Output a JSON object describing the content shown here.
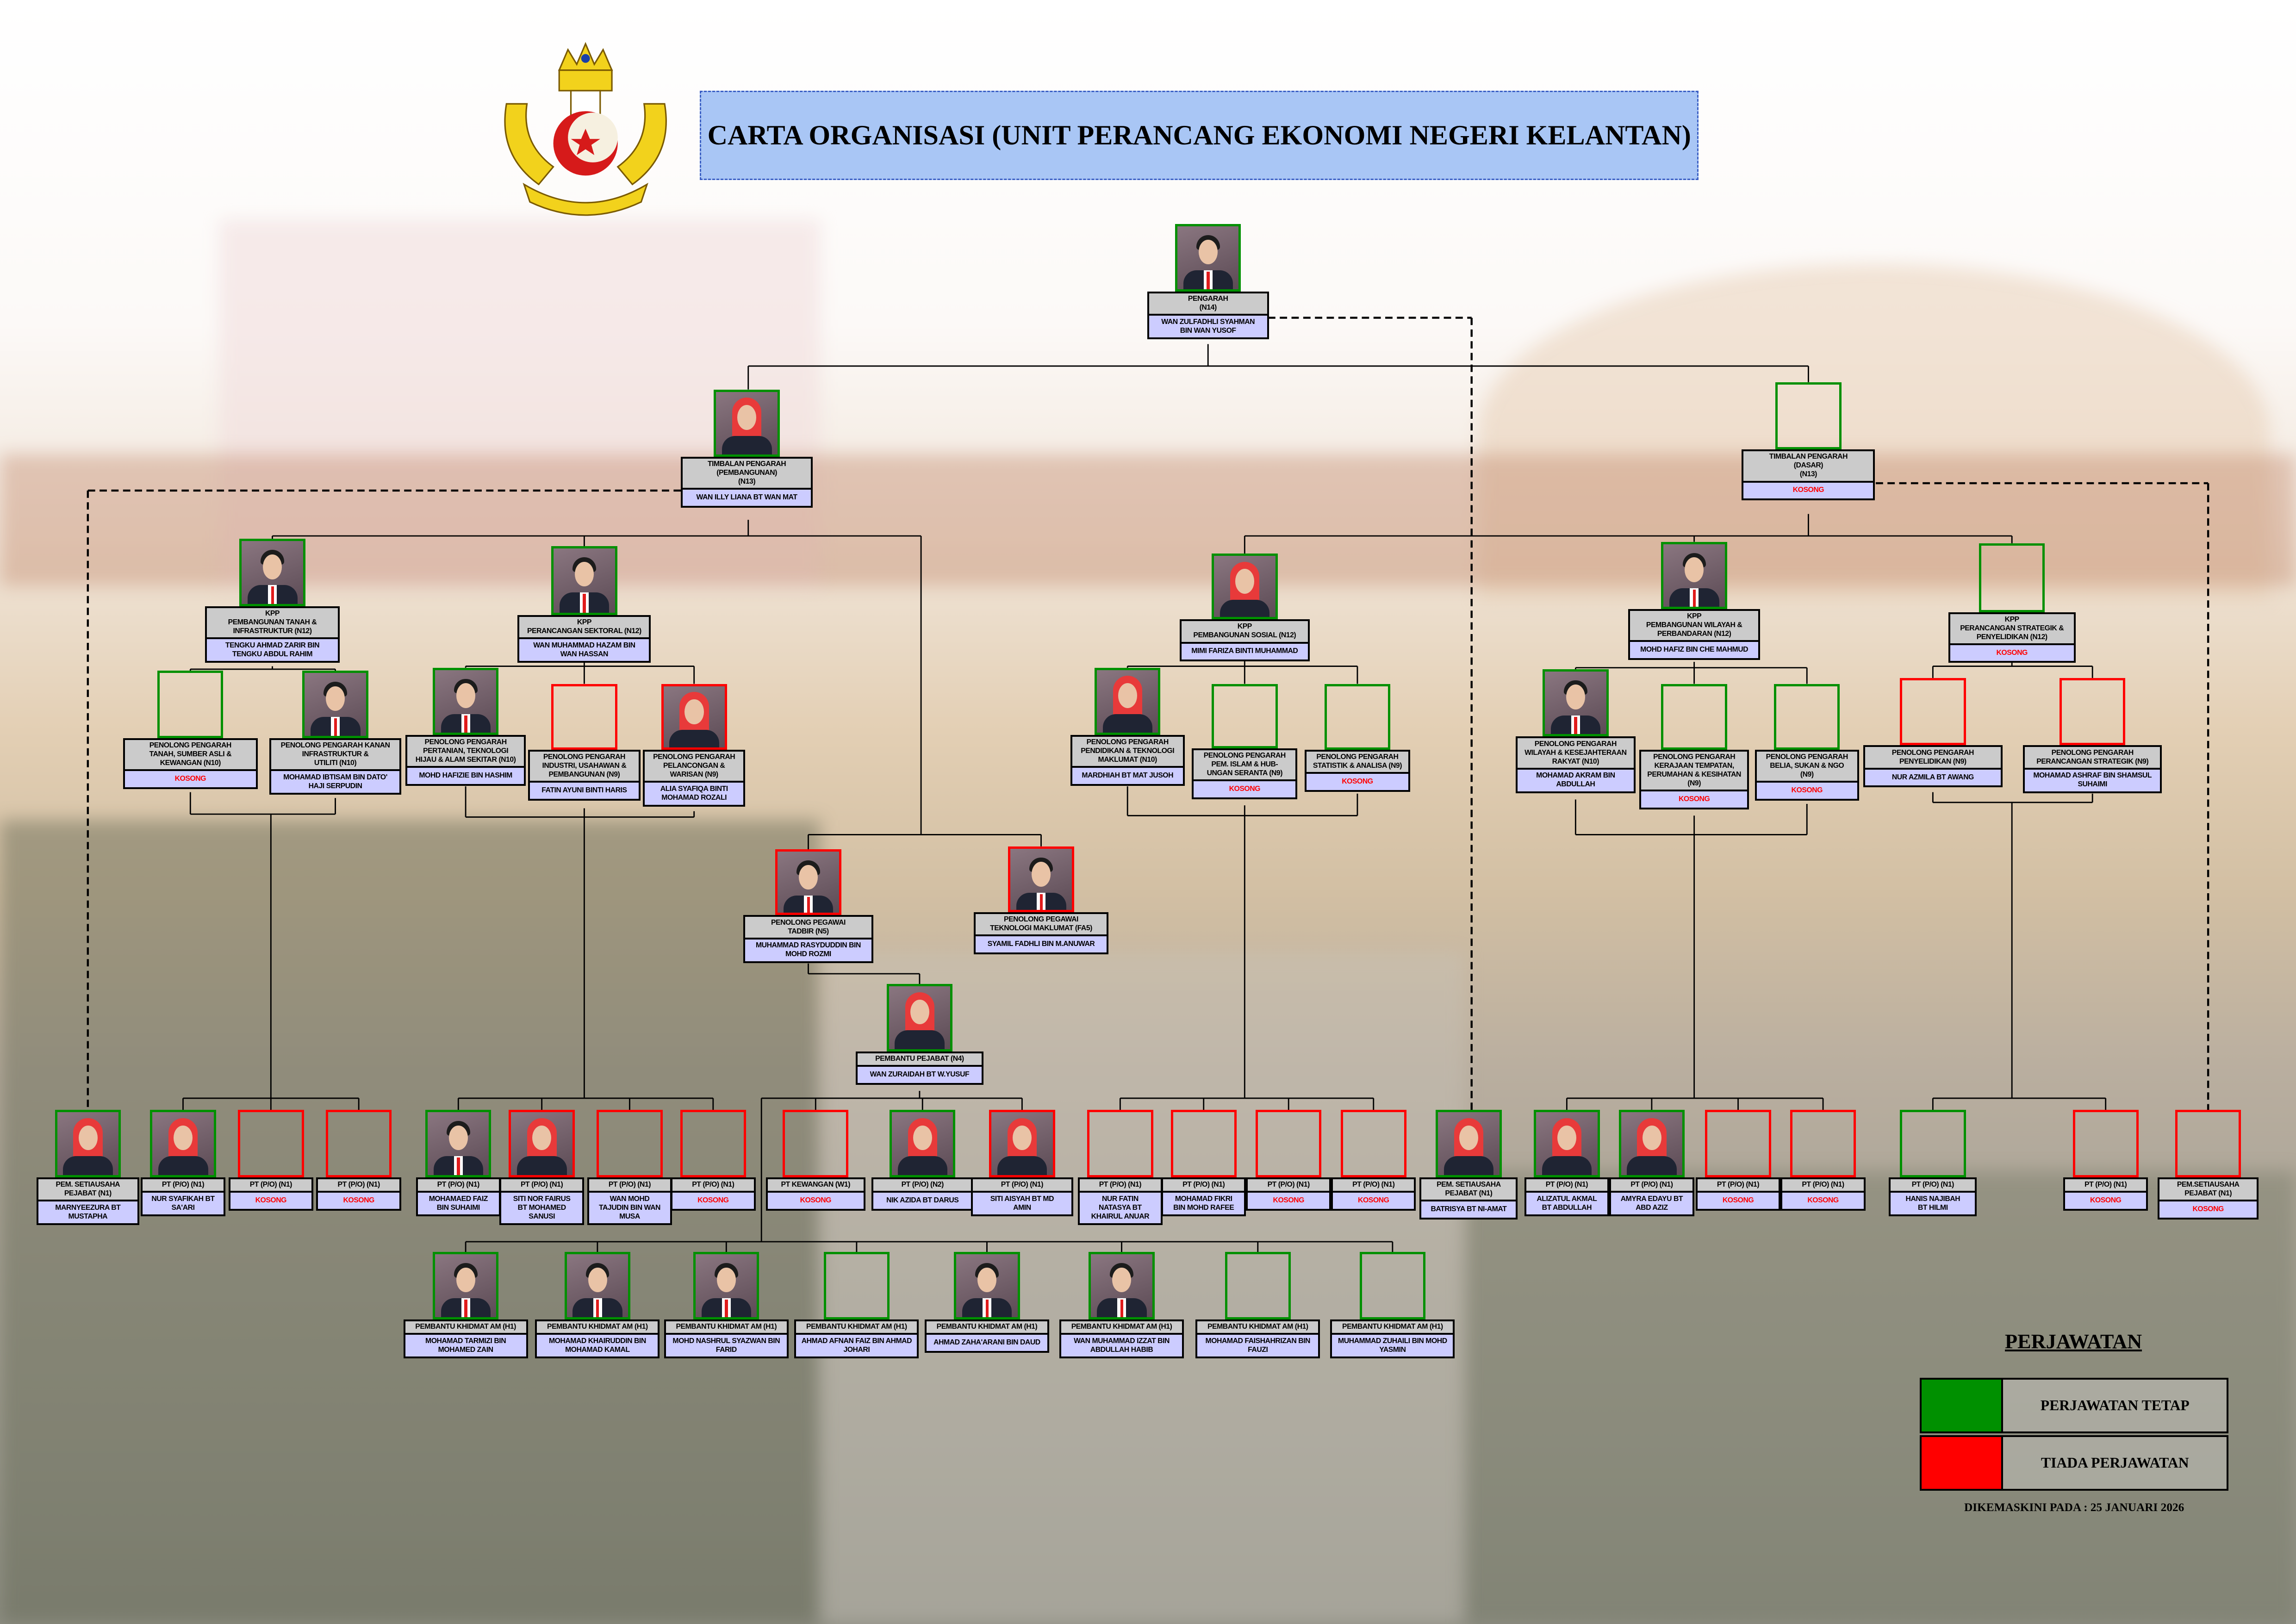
{
  "header": {
    "title": "CARTA ORGANISASI (UNIT PERANCANG EKONOMI NEGERI KELANTAN)",
    "logo_icon": "kelantan-state-crest"
  },
  "colors": {
    "tetap": "#009000",
    "tiada": "#ff0000",
    "title_bg": "#a9c6f5",
    "name_bg": "#ccccff",
    "title_cell_bg": "#cbcbcb",
    "vacant_text": "#ff0000"
  },
  "positions": [
    {
      "title": "PENGARAH\n(N14)",
      "name": "WAN ZULFADHLI SYAHMAN\nBIN WAN YUSOF",
      "frame": "tetap",
      "photo": "m"
    },
    {
      "title": "TIMBALAN PENGARAH\n(PEMBANGUNAN)\n(N13)",
      "name": "WAN ILLY LIANA BT WAN MAT",
      "frame": "tetap",
      "photo": "f"
    },
    {
      "title": "TIMBALAN PENGARAH\n(DASAR)\n(N13)",
      "name": "KOSONG",
      "vacant": true,
      "frame": "tetap",
      "photo": null
    },
    {
      "title": "KPP\nPEMBANGUNAN TANAH &\nINFRASTRUKTUR (N12)",
      "name": "TENGKU AHMAD ZARIR BIN\nTENGKU ABDUL RAHIM",
      "frame": "tetap",
      "photo": "m"
    },
    {
      "title": "KPP\nPERANCANGAN SEKTORAL (N12)",
      "name": "WAN MUHAMMAD HAZAM BIN\nWAN HASSAN",
      "frame": "tetap",
      "photo": "m"
    },
    {
      "title": "KPP\nPEMBANGUNAN SOSIAL (N12)",
      "name": "MIMI FARIZA BINTI MUHAMMAD",
      "frame": "tetap",
      "photo": "f"
    },
    {
      "title": "KPP\nPEMBANGUNAN WILAYAH &\nPERBANDARAN (N12)",
      "name": "MOHD HAFIZ BIN CHE MAHMUD",
      "frame": "tetap",
      "photo": "m"
    },
    {
      "title": "KPP\nPERANCANGAN STRATEGIK &\nPENYELIDIKAN (N12)",
      "name": "KOSONG",
      "vacant": true,
      "frame": "tetap",
      "photo": null
    },
    {
      "title": "PENOLONG PENGARAH\nTANAH, SUMBER ASLI &\nKEWANGAN (N10)",
      "name": "KOSONG",
      "vacant": true,
      "frame": "tetap",
      "photo": null
    },
    {
      "title": "PENOLONG PENGARAH KANAN\nINFRASTRUKTUR &\nUTILITI (N10)",
      "name": "MOHAMAD IBTISAM BIN DATO'\nHAJI SERPUDIN",
      "frame": "tetap",
      "photo": "m"
    },
    {
      "title": "PENOLONG PENGARAH\nPERTANIAN, TEKNOLOGI\nHIJAU & ALAM SEKITAR (N10)",
      "name": "MOHD HAFIZIE BIN HASHIM",
      "frame": "tetap",
      "photo": "m"
    },
    {
      "title": "PENOLONG PENGARAH\nINDUSTRI, USAHAWAN &\nPEMBANGUNAN (N9)",
      "name": "FATIN AYUNI BINTI HARIS",
      "frame": "tiada",
      "photo": null
    },
    {
      "title": "PENOLONG PENGARAH\nPELANCONGAN &\nWARISAN (N9)",
      "name": "ALIA SYAFIQA BINTI\nMOHAMAD ROZALI",
      "frame": "tiada",
      "photo": "f"
    },
    {
      "title": "PENOLONG PENGARAH\nPENDIDIKAN & TEKNOLOGI\nMAKLUMAT (N10)",
      "name": "MARDHIAH BT MAT JUSOH",
      "frame": "tetap",
      "photo": "f"
    },
    {
      "title": "PENOLONG PENGARAH\nPEM. ISLAM & HUB-\nUNGAN SERANTA (N9)",
      "name": "KOSONG",
      "vacant": true,
      "frame": "tetap",
      "photo": null
    },
    {
      "title": "PENOLONG PENGARAH\nSTATISTIK & ANALISA (N9)",
      "name": "KOSONG",
      "vacant": true,
      "frame": "tetap",
      "photo": null
    },
    {
      "title": "PENOLONG PENGARAH\nWILAYAH & KESEJAHTERAAN\nRAKYAT (N10)",
      "name": "MOHAMAD AKRAM BIN\nABDULLAH",
      "frame": "tetap",
      "photo": "m"
    },
    {
      "title": "PENOLONG PENGARAH\nKERAJAAN TEMPATAN,\nPERUMAHAN & KESIHATAN\n(N9)",
      "name": "KOSONG",
      "vacant": true,
      "frame": "tetap",
      "photo": null
    },
    {
      "title": "PENOLONG PENGARAH\nBELIA, SUKAN & NGO\n(N9)",
      "name": "KOSONG",
      "vacant": true,
      "frame": "tetap",
      "photo": null
    },
    {
      "title": "PENOLONG PENGARAH\nPENYELIDIKAN (N9)",
      "name": "NUR AZMILA BT AWANG",
      "frame": "tiada",
      "photo": null
    },
    {
      "title": "PENOLONG PENGARAH\nPERANCANGAN STRATEGIK (N9)",
      "name": "MOHAMAD ASHRAF BIN SHAMSUL\nSUHAIMI",
      "frame": "tiada",
      "photo": null
    },
    {
      "title": "PENOLONG PEGAWAI\nTADBIR (N5)",
      "name": "MUHAMMAD RASYDUDDIN BIN\nMOHD ROZMI",
      "frame": "tiada",
      "photo": "m"
    },
    {
      "title": "PENOLONG PEGAWAI\nTEKNOLOGI MAKLUMAT (FA5)",
      "name": "SYAMIL FADHLI BIN M.ANUWAR",
      "frame": "tiada",
      "photo": "m"
    },
    {
      "title": "PEMBANTU PEJABAT (N4)",
      "name": "WAN ZURAIDAH BT W.YUSUF",
      "frame": "tetap",
      "photo": "f"
    },
    {
      "title": "PEM. SETIAUSAHA\nPEJABAT (N1)",
      "name": "MARNYEEZURA BT\nMUSTAPHA",
      "frame": "tetap",
      "photo": "f"
    },
    {
      "title": "PT (P/O) (N1)",
      "name": "NUR SYAFIKAH BT\nSA'ARI",
      "frame": "tetap",
      "photo": "f"
    },
    {
      "title": "PT (P/O) (N1)",
      "name": "KOSONG",
      "vacant": true,
      "frame": "tiada",
      "photo": null
    },
    {
      "title": "PT (P/O) (N1)",
      "name": "KOSONG",
      "vacant": true,
      "frame": "tiada",
      "photo": null
    },
    {
      "title": "PT (P/O) (N1)",
      "name": "MOHAMAED FAIZ\nBIN SUHAIMI",
      "frame": "tetap",
      "photo": "m"
    },
    {
      "title": "PT (P/O) (N1)",
      "name": "SITI NOR FAIRUS\nBT MOHAMED\nSANUSI",
      "frame": "tiada",
      "photo": "f"
    },
    {
      "title": "PT (P/O) (N1)",
      "name": "WAN MOHD\nTAJUDIN BIN WAN\nMUSA",
      "frame": "tiada",
      "photo": null
    },
    {
      "title": "PT (P/O) (N1)",
      "name": "KOSONG",
      "vacant": true,
      "frame": "tiada",
      "photo": null
    },
    {
      "title": "PT KEWANGAN (W1)",
      "name": "KOSONG",
      "vacant": true,
      "frame": "tiada",
      "photo": null
    },
    {
      "title": "PT (P/O) (N2)",
      "name": "NIK AZIDA BT DARUS",
      "frame": "tetap",
      "photo": "f"
    },
    {
      "title": "PT (P/O) (N1)",
      "name": "SITI AISYAH BT MD\nAMIN",
      "frame": "tiada",
      "photo": "f"
    },
    {
      "title": "PT (P/O) (N1)",
      "name": "NUR FATIN\nNATASYA BT\nKHAIRUL ANUAR",
      "frame": "tiada",
      "photo": null
    },
    {
      "title": "PT (P/O) (N1)",
      "name": "MOHAMAD FIKRI\nBIN MOHD RAFEE",
      "frame": "tiada",
      "photo": null
    },
    {
      "title": "PT (P/O) (N1)",
      "name": "KOSONG",
      "vacant": true,
      "frame": "tiada",
      "photo": null
    },
    {
      "title": "PT (P/O) (N1)",
      "name": "KOSONG",
      "vacant": true,
      "frame": "tiada",
      "photo": null
    },
    {
      "title": "PEM. SETIAUSAHA\nPEJABAT (N1)",
      "name": "BATRISYA BT NI-AMAT",
      "frame": "tetap",
      "photo": "f"
    },
    {
      "title": "PT (P/O) (N1)",
      "name": "ALIZATUL AKMAL\nBT ABDULLAH",
      "frame": "tetap",
      "photo": "f"
    },
    {
      "title": "PT (P/O) (N1)",
      "name": "AMYRA EDAYU BT\nABD AZIZ",
      "frame": "tetap",
      "photo": "f"
    },
    {
      "title": "PT (P/O) (N1)",
      "name": "KOSONG",
      "vacant": true,
      "frame": "tiada",
      "photo": null
    },
    {
      "title": "PT (P/O) (N1)",
      "name": "KOSONG",
      "vacant": true,
      "frame": "tiada",
      "photo": null
    },
    {
      "title": "PT (P/O) (N1)",
      "name": "HANIS NAJIBAH\nBT HILMI",
      "frame": "tetap",
      "photo": null
    },
    {
      "title": "PT (P/O) (N1)",
      "name": "KOSONG",
      "vacant": true,
      "frame": "tiada",
      "photo": null
    },
    {
      "title": "PEM.SETIAUSAHA\nPEJABAT (N1)",
      "name": "KOSONG",
      "vacant": true,
      "frame": "tiada",
      "photo": null
    },
    {
      "title": "PEMBANTU KHIDMAT AM (H1)",
      "name": "MOHAMAD TARMIZI BIN\nMOHAMED ZAIN",
      "frame": "tetap",
      "photo": "m"
    },
    {
      "title": "PEMBANTU KHIDMAT AM (H1)",
      "name": "MOHAMAD KHAIRUDDIN BIN\nMOHAMAD KAMAL",
      "frame": "tetap",
      "photo": "m"
    },
    {
      "title": "PEMBANTU KHIDMAT AM (H1)",
      "name": "MOHD NASHRUL SYAZWAN BIN\nFARID",
      "frame": "tetap",
      "photo": "m"
    },
    {
      "title": "PEMBANTU KHIDMAT AM (H1)",
      "name": "AHMAD AFNAN FAIZ BIN AHMAD\nJOHARI",
      "frame": "tetap",
      "photo": null
    },
    {
      "title": "PEMBANTU KHIDMAT AM (H1)",
      "name": "AHMAD ZAHA'ARANI BIN DAUD",
      "frame": "tetap",
      "photo": "m"
    },
    {
      "title": "PEMBANTU KHIDMAT AM (H1)",
      "name": "WAN MUHAMMAD IZZAT BIN\nABDULLAH HABIB",
      "frame": "tetap",
      "photo": "m"
    },
    {
      "title": "PEMBANTU KHIDMAT AM (H1)",
      "name": "MOHAMAD FAISHAHRIZAN BIN\nFAUZI",
      "frame": "tetap",
      "photo": null
    },
    {
      "title": "PEMBANTU KHIDMAT AM (H1)",
      "name": "MUHAMMAD ZUHAILI BIN MOHD\nYASMIN",
      "frame": "tetap",
      "photo": null
    }
  ],
  "legend": {
    "heading": "PERJAWATAN",
    "items": [
      {
        "label": "PERJAWATAN TETAP",
        "color": "#009000"
      },
      {
        "label": "TIADA PERJAWATAN",
        "color": "#ff0000"
      }
    ],
    "updated": "DIKEMASKINI PADA : 25 JANUARI 2026"
  }
}
